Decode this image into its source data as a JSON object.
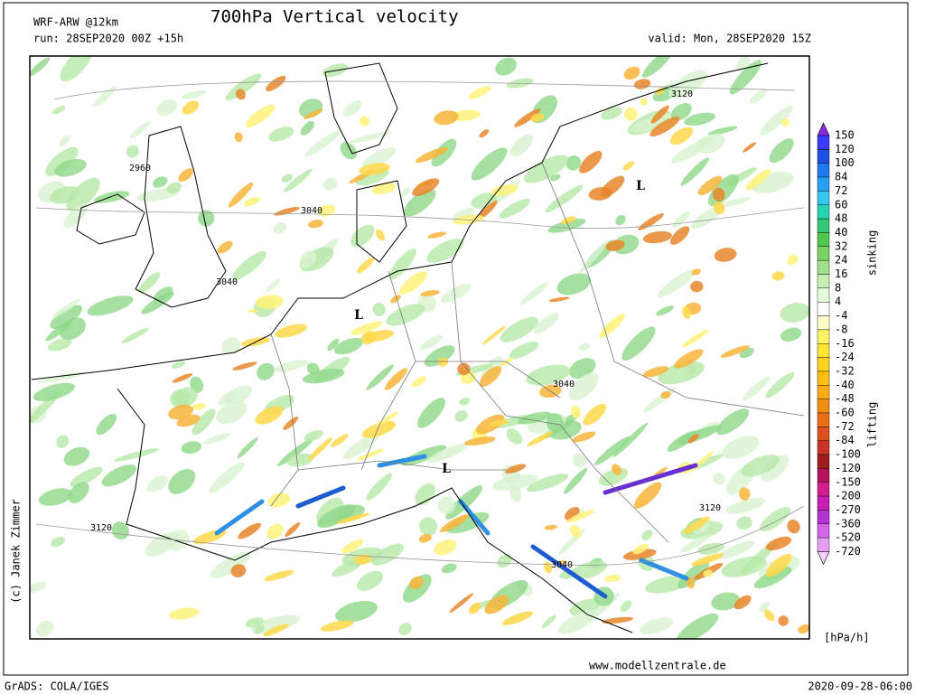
{
  "header": {
    "model": "WRF-ARW @12km",
    "title": "700hPa Vertical velocity",
    "run": "run: 28SEP2020 00Z +15h",
    "valid": "valid: Mon, 28SEP2020 15Z"
  },
  "map": {
    "labels": [
      "3120",
      "2960",
      "3040",
      "3040",
      "L",
      "L",
      "3040",
      "L",
      "3120",
      "3120",
      "3040"
    ]
  },
  "colorbar": {
    "labels": [
      150,
      120,
      100,
      84,
      72,
      60,
      48,
      40,
      32,
      24,
      16,
      8,
      4,
      -4,
      -8,
      -16,
      -24,
      -32,
      -40,
      -48,
      -60,
      -72,
      -84,
      -100,
      -120,
      -150,
      -200,
      -270,
      -360,
      -520,
      -720
    ],
    "upper_caption": "sinking",
    "lower_caption": "lifting",
    "unit": "[hPa/h]"
  },
  "footer": {
    "credit": "(c) Janek Zimmer",
    "website": "www.modellzentrale.de",
    "software": "GrADS: COLA/IGES",
    "timestamp": "2020-09-28-06:00"
  }
}
